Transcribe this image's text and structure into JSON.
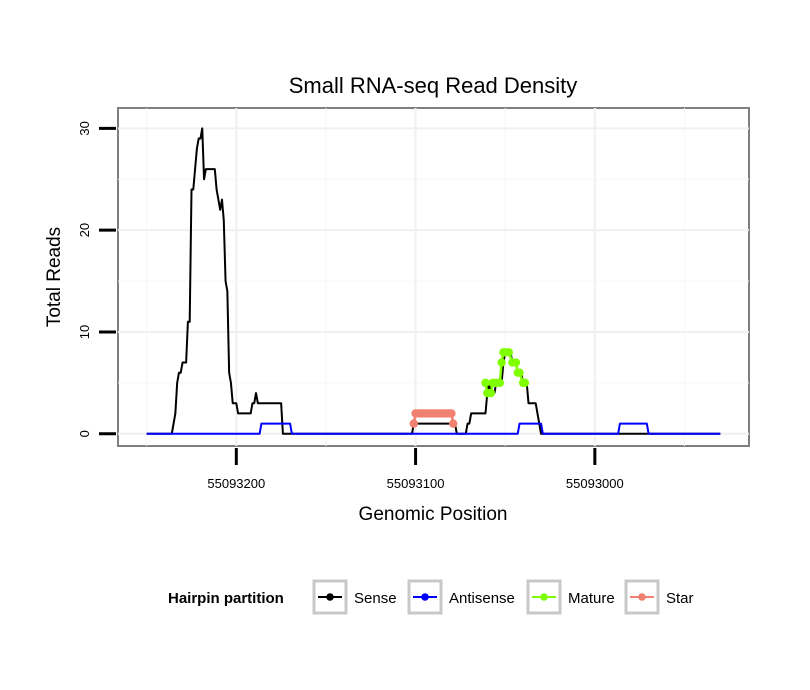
{
  "chart_data": {
    "type": "line",
    "title": "Small RNA-seq Read Density",
    "xlabel": "Genomic Position",
    "ylabel": "Total Reads",
    "x_reversed": true,
    "xlim": [
      55093266,
      55092914
    ],
    "ylim": [
      -1.2,
      32
    ],
    "xticks": [
      55093200,
      55093100,
      55093000
    ],
    "xtick_labels": [
      "55093200",
      "55093100",
      "55093000"
    ],
    "yticks": [
      0,
      10,
      20,
      30
    ],
    "ytick_labels": [
      "0",
      "10",
      "20",
      "30"
    ],
    "grid": true,
    "legend": {
      "title": "Hairpin partition",
      "position": "bottom",
      "entries": [
        "Sense",
        "Antisense",
        "Mature",
        "Star"
      ]
    },
    "series": [
      {
        "name": "Sense",
        "color": "#000000",
        "kind": "line",
        "points": [
          [
            55093250,
            0
          ],
          [
            55093236,
            0
          ],
          [
            55093234,
            2
          ],
          [
            55093233,
            5
          ],
          [
            55093232,
            6
          ],
          [
            55093231,
            6
          ],
          [
            55093230,
            7
          ],
          [
            55093228,
            7
          ],
          [
            55093227,
            11
          ],
          [
            55093226,
            11
          ],
          [
            55093225,
            24
          ],
          [
            55093224,
            24
          ],
          [
            55093223,
            26
          ],
          [
            55093222,
            28
          ],
          [
            55093221,
            29
          ],
          [
            55093220,
            29
          ],
          [
            55093219,
            30
          ],
          [
            55093218,
            25
          ],
          [
            55093217,
            26
          ],
          [
            55093212,
            26
          ],
          [
            55093211,
            24
          ],
          [
            55093210,
            23
          ],
          [
            55093209,
            22
          ],
          [
            55093208,
            23
          ],
          [
            55093207,
            21
          ],
          [
            55093206,
            15
          ],
          [
            55093205,
            14
          ],
          [
            55093204,
            6
          ],
          [
            55093203,
            5
          ],
          [
            55093202,
            3
          ],
          [
            55093200,
            3
          ],
          [
            55093199,
            2
          ],
          [
            55093192,
            2
          ],
          [
            55093191,
            3
          ],
          [
            55093190,
            3
          ],
          [
            55093189,
            4
          ],
          [
            55093188,
            3
          ],
          [
            55093175,
            3
          ],
          [
            55093174,
            0
          ],
          [
            55093102,
            0
          ],
          [
            55093101,
            1
          ],
          [
            55093100,
            1
          ],
          [
            55093078,
            1
          ],
          [
            55093077,
            0
          ],
          [
            55093072,
            0
          ],
          [
            55093071,
            1
          ],
          [
            55093070,
            1
          ],
          [
            55093069,
            2
          ],
          [
            55093061,
            2
          ],
          [
            55093060,
            4
          ],
          [
            55093059,
            5
          ],
          [
            55093058,
            4
          ],
          [
            55093056,
            4
          ],
          [
            55093055,
            5
          ],
          [
            55093052,
            5
          ],
          [
            55093051,
            7
          ],
          [
            55093050,
            8
          ],
          [
            55093047,
            8
          ],
          [
            55093046,
            7
          ],
          [
            55093044,
            7
          ],
          [
            55093043,
            6
          ],
          [
            55093041,
            6
          ],
          [
            55093040,
            5
          ],
          [
            55093038,
            5
          ],
          [
            55093037,
            3
          ],
          [
            55093033,
            3
          ],
          [
            55093032,
            2
          ],
          [
            55093031,
            1
          ],
          [
            55093030,
            0
          ],
          [
            55092930,
            0
          ]
        ]
      },
      {
        "name": "Antisense",
        "color": "#0000ff",
        "kind": "line",
        "points": [
          [
            55093250,
            0
          ],
          [
            55093187,
            0
          ],
          [
            55093186,
            1
          ],
          [
            55093170,
            1
          ],
          [
            55093169,
            0
          ],
          [
            55093043,
            0
          ],
          [
            55093042,
            1
          ],
          [
            55093030,
            1
          ],
          [
            55093029,
            0
          ],
          [
            55092987,
            0
          ],
          [
            55092986,
            1
          ],
          [
            55092971,
            1
          ],
          [
            55092970,
            0
          ],
          [
            55092930,
            0
          ]
        ]
      },
      {
        "name": "Mature",
        "color": "#7fff00",
        "kind": "points",
        "points": [
          [
            55093061,
            5
          ],
          [
            55093060,
            4
          ],
          [
            55093059,
            4
          ],
          [
            55093058,
            4
          ],
          [
            55093057,
            5
          ],
          [
            55093055,
            5
          ],
          [
            55093053,
            5
          ],
          [
            55093052,
            7
          ],
          [
            55093051,
            8
          ],
          [
            55093050,
            8
          ],
          [
            55093048,
            8
          ],
          [
            55093046,
            7
          ],
          [
            55093044,
            7
          ],
          [
            55093043,
            6
          ],
          [
            55093042,
            6
          ],
          [
            55093040,
            5
          ],
          [
            55093039,
            5
          ]
        ]
      },
      {
        "name": "Star",
        "color": "#f08070",
        "kind": "points",
        "points": [
          [
            55093101,
            1
          ],
          [
            55093100,
            2
          ],
          [
            55093099,
            2
          ],
          [
            55093098,
            2
          ],
          [
            55093097,
            2
          ],
          [
            55093096,
            2
          ],
          [
            55093095,
            2
          ],
          [
            55093094,
            2
          ],
          [
            55093093,
            2
          ],
          [
            55093092,
            2
          ],
          [
            55093091,
            2
          ],
          [
            55093090,
            2
          ],
          [
            55093089,
            2
          ],
          [
            55093088,
            2
          ],
          [
            55093087,
            2
          ],
          [
            55093086,
            2
          ],
          [
            55093085,
            2
          ],
          [
            55093084,
            2
          ],
          [
            55093083,
            2
          ],
          [
            55093082,
            2
          ],
          [
            55093081,
            2
          ],
          [
            55093080,
            2
          ],
          [
            55093079,
            1
          ]
        ]
      }
    ]
  }
}
